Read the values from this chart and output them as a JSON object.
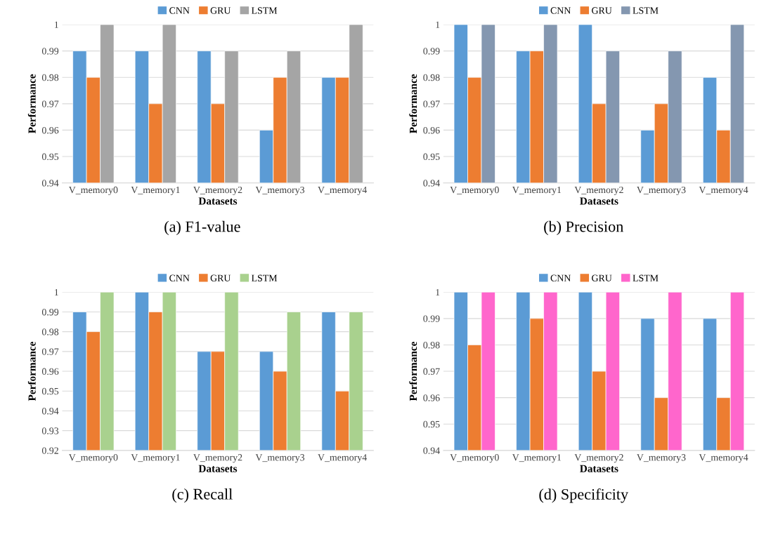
{
  "chart_data": [
    {
      "type": "bar",
      "title": "(a) F1-value",
      "xlabel": "Datasets",
      "ylabel": "Performance",
      "categories": [
        "V_memory0",
        "V_memory1",
        "V_memory2",
        "V_memory3",
        "V_memory4"
      ],
      "series": [
        {
          "name": "CNN",
          "color": "#5b9bd5",
          "values": [
            0.99,
            0.99,
            0.99,
            0.96,
            0.98
          ]
        },
        {
          "name": "GRU",
          "color": "#ed7d31",
          "values": [
            0.98,
            0.97,
            0.97,
            0.98,
            0.98
          ]
        },
        {
          "name": "LSTM",
          "color": "#a5a5a5",
          "values": [
            1,
            1,
            0.99,
            0.99,
            1
          ]
        }
      ],
      "ylim": [
        0.94,
        1
      ],
      "yticks": [
        0.94,
        0.95,
        0.96,
        0.97,
        0.98,
        0.99,
        1
      ],
      "grid": "y",
      "legend": "top"
    },
    {
      "type": "bar",
      "title": "(b) Precision",
      "xlabel": "Datasets",
      "ylabel": "Performance",
      "categories": [
        "V_memory0",
        "V_memory1",
        "V_memory2",
        "V_memory3",
        "V_memory4"
      ],
      "series": [
        {
          "name": "CNN",
          "color": "#5b9bd5",
          "values": [
            1,
            0.99,
            1,
            0.96,
            0.98
          ]
        },
        {
          "name": "GRU",
          "color": "#ed7d31",
          "values": [
            0.98,
            0.99,
            0.97,
            0.97,
            0.96
          ]
        },
        {
          "name": "LSTM",
          "color": "#8497b0",
          "values": [
            1,
            1,
            0.99,
            0.99,
            1
          ]
        }
      ],
      "ylim": [
        0.94,
        1
      ],
      "yticks": [
        0.94,
        0.95,
        0.96,
        0.97,
        0.98,
        0.99,
        1
      ],
      "grid": "y",
      "legend": "top"
    },
    {
      "type": "bar",
      "title": "(c) Recall",
      "xlabel": "Datasets",
      "ylabel": "Performance",
      "categories": [
        "V_memory0",
        "V_memory1",
        "V_memory2",
        "V_memory3",
        "V_memory4"
      ],
      "series": [
        {
          "name": "CNN",
          "color": "#5b9bd5",
          "values": [
            0.99,
            1,
            0.97,
            0.97,
            0.99
          ]
        },
        {
          "name": "GRU",
          "color": "#ed7d31",
          "values": [
            0.98,
            0.99,
            0.97,
            0.96,
            0.95
          ]
        },
        {
          "name": "LSTM",
          "color": "#a9d18e",
          "values": [
            1,
            1,
            1,
            0.99,
            0.99
          ]
        }
      ],
      "ylim": [
        0.92,
        1
      ],
      "yticks": [
        0.92,
        0.93,
        0.94,
        0.95,
        0.96,
        0.97,
        0.98,
        0.99,
        1
      ],
      "grid": "y",
      "legend": "top"
    },
    {
      "type": "bar",
      "title": "(d) Specificity",
      "xlabel": "Datasets",
      "ylabel": "Performance",
      "categories": [
        "V_memory0",
        "V_memory1",
        "V_memory2",
        "V_memory3",
        "V_memory4"
      ],
      "series": [
        {
          "name": "CNN",
          "color": "#5b9bd5",
          "values": [
            1,
            1,
            1,
            0.99,
            0.99
          ]
        },
        {
          "name": "GRU",
          "color": "#ed7d31",
          "values": [
            0.98,
            0.99,
            0.97,
            0.96,
            0.96
          ]
        },
        {
          "name": "LSTM",
          "color": "#ff66cc",
          "values": [
            1,
            1,
            1,
            1,
            1
          ]
        }
      ],
      "ylim": [
        0.94,
        1
      ],
      "yticks": [
        0.94,
        0.95,
        0.96,
        0.97,
        0.98,
        0.99,
        1
      ],
      "grid": "y",
      "legend": "top"
    }
  ]
}
